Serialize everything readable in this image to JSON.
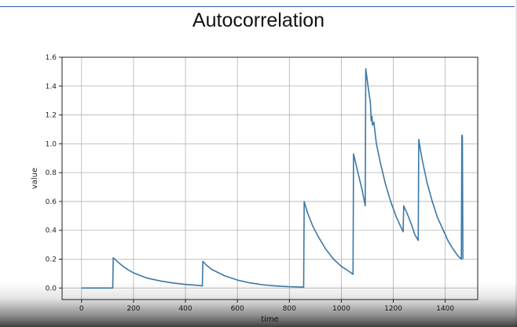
{
  "slide": {
    "title": "Autocorrelation"
  },
  "chart_data": {
    "type": "line",
    "title": "",
    "xlabel": "time",
    "ylabel": "value",
    "xlim": [
      -75,
      1525
    ],
    "ylim": [
      -0.08,
      1.6
    ],
    "xticks": [
      0,
      200,
      400,
      600,
      800,
      1000,
      1200,
      1400
    ],
    "yticks": [
      0.0,
      0.2,
      0.4,
      0.6,
      0.8,
      1.0,
      1.2,
      1.4,
      1.6
    ],
    "xtick_labels": [
      "0",
      "200",
      "400",
      "600",
      "800",
      "1000",
      "1200",
      "1400"
    ],
    "ytick_labels": [
      "0.0",
      "0.2",
      "0.4",
      "0.6",
      "0.8",
      "1.0",
      "1.2",
      "1.4",
      "1.6"
    ],
    "grid": true,
    "line_color": "#3b78a8",
    "series": [
      {
        "x": [
          0,
          120,
          122,
          140,
          160,
          180,
          200,
          250,
          300,
          350,
          400,
          450,
          465,
          467,
          480,
          500,
          550,
          600,
          650,
          700,
          750,
          800,
          855,
          857,
          870,
          890,
          910,
          940,
          970,
          1000,
          1030,
          1045,
          1047,
          1060,
          1080,
          1092,
          1094,
          1105,
          1112,
          1115,
          1118,
          1120,
          1125,
          1135,
          1150,
          1170,
          1190,
          1210,
          1230,
          1238,
          1240,
          1255,
          1270,
          1283,
          1296,
          1298,
          1310,
          1330,
          1350,
          1370,
          1390,
          1410,
          1430,
          1450,
          1462,
          1464,
          1466,
          1468
        ],
        "y": [
          0.0,
          0.0,
          0.21,
          0.18,
          0.15,
          0.125,
          0.105,
          0.07,
          0.05,
          0.035,
          0.025,
          0.018,
          0.015,
          0.185,
          0.16,
          0.13,
          0.085,
          0.055,
          0.035,
          0.022,
          0.014,
          0.009,
          0.006,
          0.6,
          0.52,
          0.43,
          0.36,
          0.27,
          0.2,
          0.15,
          0.115,
          0.095,
          0.93,
          0.83,
          0.68,
          0.57,
          1.52,
          1.37,
          1.28,
          1.16,
          1.19,
          1.13,
          1.15,
          1.0,
          0.87,
          0.72,
          0.6,
          0.5,
          0.42,
          0.39,
          0.57,
          0.51,
          0.44,
          0.37,
          0.33,
          1.03,
          0.9,
          0.73,
          0.6,
          0.49,
          0.41,
          0.33,
          0.27,
          0.22,
          0.2,
          1.06,
          1.05,
          0.2
        ]
      }
    ]
  }
}
